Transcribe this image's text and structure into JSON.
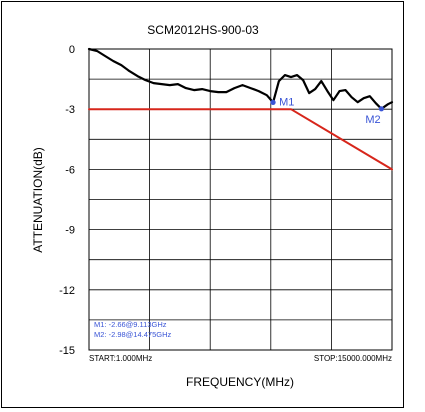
{
  "chart_data": {
    "type": "line",
    "title": "SCM2012HS-900-03",
    "xlabel": "FREQUENCY(MHz)",
    "ylabel": "ATTENUATION(dB)",
    "xlim": [
      1.0,
      15000.0
    ],
    "ylim": [
      -15,
      0
    ],
    "yticks": [
      "0",
      "-3",
      "-6",
      "-9",
      "-12",
      "-15"
    ],
    "start_label": "START:1.000MHz",
    "stop_label": "STOP:15000.000MHz",
    "grid": true,
    "series": [
      {
        "color": "#000000",
        "x": [
          1,
          400,
          800,
          1200,
          1600,
          2000,
          2400,
          2800,
          3200,
          3600,
          4000,
          4400,
          4800,
          5200,
          5600,
          6000,
          6400,
          6800,
          7200,
          7600,
          8000,
          8400,
          8800,
          9113,
          9400,
          9700,
          10000,
          10300,
          10600,
          10900,
          11200,
          11500,
          11800,
          12100,
          12400,
          12700,
          13000,
          13300,
          13600,
          13900,
          14200,
          14475,
          14800,
          15000
        ],
        "y": [
          0,
          -0.1,
          -0.35,
          -0.6,
          -0.8,
          -1.1,
          -1.35,
          -1.55,
          -1.7,
          -1.75,
          -1.8,
          -1.75,
          -1.95,
          -2.05,
          -2.0,
          -2.1,
          -2.15,
          -2.15,
          -1.95,
          -1.8,
          -1.95,
          -2.1,
          -2.3,
          -2.66,
          -1.6,
          -1.3,
          -1.4,
          -1.3,
          -1.55,
          -2.2,
          -2.0,
          -1.6,
          -2.1,
          -2.55,
          -2.1,
          -2.05,
          -2.4,
          -2.65,
          -2.45,
          -2.35,
          -2.7,
          -2.98,
          -2.75,
          -2.65
        ]
      },
      {
        "color": "#d7261b",
        "x": [
          1,
          10000,
          15000
        ],
        "y": [
          -3,
          -3,
          -6
        ]
      }
    ],
    "markers": [
      {
        "label": "M1",
        "x": 9113,
        "y": -2.66
      },
      {
        "label": "M2",
        "x": 14475,
        "y": -2.98
      }
    ],
    "marker_readout": [
      "M1:  -2.66@9.113GHz",
      "M2:  -2.98@14.475GHz"
    ],
    "colors": {
      "marker": "#3a55d6",
      "grid": "#000000"
    }
  }
}
